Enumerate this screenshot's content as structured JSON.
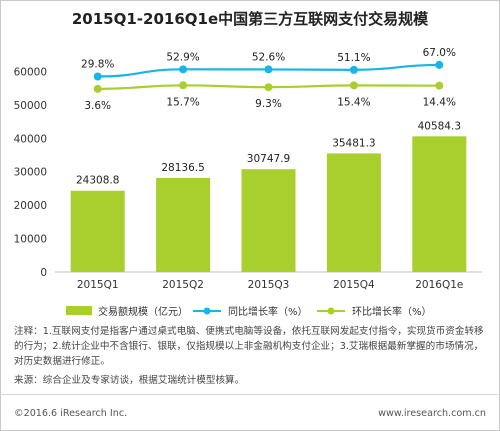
{
  "colors": {
    "bar": "#a8cf2d",
    "yoy_line": "#17b6e6",
    "qoq_line": "#a8cf2d",
    "axis_text": "#333333",
    "grid": "#d9d9d9"
  },
  "chart_data": {
    "type": "bar",
    "title": "2015Q1-2016Q1e中国第三方互联网支付交易规模",
    "categories": [
      "2015Q1",
      "2015Q2",
      "2015Q3",
      "2015Q4",
      "2016Q1e"
    ],
    "ylim": [
      0,
      70000
    ],
    "yticks": [
      0,
      10000,
      20000,
      30000,
      40000,
      50000,
      60000
    ],
    "ylabel": "",
    "xlabel": "",
    "grid": false,
    "legend_position": "bottom",
    "series": [
      {
        "name": "交易额规模（亿元）",
        "type": "bar",
        "values": [
          24308.8,
          28136.5,
          30747.9,
          35481.3,
          40584.3
        ],
        "labels": [
          "24308.8",
          "28136.5",
          "30747.9",
          "35481.3",
          "40584.3"
        ]
      },
      {
        "name": "同比增长率（%）",
        "type": "line",
        "values": [
          29.8,
          52.9,
          52.6,
          51.1,
          67.0
        ],
        "labels": [
          "29.8%",
          "52.9%",
          "52.6%",
          "51.1%",
          "67.0%"
        ]
      },
      {
        "name": "环比增长率（%）",
        "type": "line",
        "values": [
          3.6,
          15.7,
          9.3,
          15.4,
          14.4
        ],
        "labels": [
          "3.6%",
          "15.7%",
          "9.3%",
          "15.4%",
          "14.4%"
        ]
      }
    ]
  },
  "legend": {
    "bar": "交易额规模（亿元）",
    "yoy": "同比增长率（%）",
    "qoq": "环比增长率（%）"
  },
  "note": "注释：1.互联网支付是指客户通过桌式电脑、便携式电脑等设备，依托互联网发起支付指令，实现货币资金转移的行为；2.统计企业中不含银行、银联，仅指规模以上非金融机构支付企业；3.艾瑞根据最新掌握的市场情况，对历史数据进行修正。",
  "source": "来源：综合企业及专家访谈，根据艾瑞统计模型核算。",
  "footer": {
    "copyright": "©2016.6 iResearch Inc.",
    "website": "www.iresearch.com.cn"
  }
}
